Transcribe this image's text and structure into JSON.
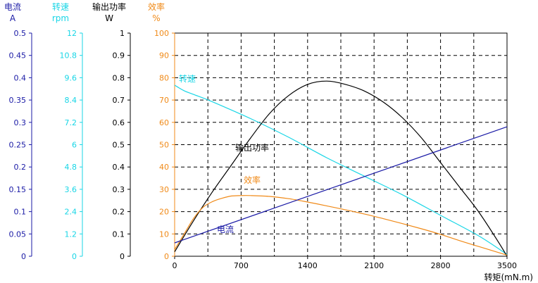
{
  "colors": {
    "current": "#1a1aa6",
    "speed": "#19d6e6",
    "power": "#000000",
    "efficiency": "#f08a18",
    "grid": "#000000"
  },
  "chart_data": {
    "type": "line",
    "title": "",
    "grid": true,
    "x_axis": {
      "label": "转矩",
      "unit": "(mN.m)",
      "range": [
        0,
        3500
      ],
      "ticks": [
        0,
        700,
        1400,
        2100,
        2800,
        3500
      ],
      "tick_labels": [
        "0",
        "700",
        "1400",
        "2100",
        "2800",
        "3500"
      ]
    },
    "y_axes": [
      {
        "id": "current",
        "title": "电流",
        "unit": "A",
        "range": [
          0,
          0.5
        ],
        "tick_labels": [
          "0.5",
          "0.45",
          "0.4",
          "0.35",
          "0.3",
          "0.25",
          "0.2",
          "0.15",
          "0.1",
          "0.05",
          "0"
        ]
      },
      {
        "id": "speed",
        "title": "转速",
        "unit": "rpm",
        "range": [
          0,
          12
        ],
        "tick_labels": [
          "12",
          "10.8",
          "9.6",
          "8.4",
          "7.2",
          "6",
          "4.8",
          "3.6",
          "2.4",
          "1.2",
          "0"
        ]
      },
      {
        "id": "power",
        "title": "输出功率",
        "unit": "W",
        "range": [
          0,
          1
        ],
        "tick_labels": [
          "1",
          "0.9",
          "0.8",
          "0.7",
          "0.6",
          "0.5",
          "0.4",
          "0.3",
          "0.2",
          "0.1",
          "0"
        ]
      },
      {
        "id": "efficiency",
        "title": "效率",
        "unit": "%",
        "range": [
          0,
          100
        ],
        "tick_labels": [
          "100",
          "90",
          "80",
          "70",
          "60",
          "50",
          "40",
          "30",
          "20",
          "10",
          "0"
        ]
      }
    ],
    "series": [
      {
        "name": "转速",
        "axis": "speed",
        "x": [
          0,
          100,
          200,
          400,
          800,
          1200,
          1600,
          2000,
          2400,
          2800,
          3200,
          3500
        ],
        "y": [
          9.2,
          8.9,
          8.7,
          8.3,
          7.4,
          6.4,
          5.3,
          4.3,
          3.3,
          2.2,
          1.1,
          0.1
        ]
      },
      {
        "name": "输出功率",
        "axis": "power",
        "x": [
          0,
          200,
          400,
          600,
          800,
          1000,
          1200,
          1400,
          1600,
          1800,
          2000,
          2200,
          2400,
          2600,
          2800,
          3000,
          3200,
          3400,
          3500
        ],
        "y": [
          0.02,
          0.16,
          0.29,
          0.41,
          0.53,
          0.64,
          0.72,
          0.77,
          0.785,
          0.77,
          0.74,
          0.69,
          0.62,
          0.53,
          0.42,
          0.31,
          0.2,
          0.07,
          0.0
        ]
      },
      {
        "name": "效率",
        "axis": "efficiency",
        "x": [
          0,
          100,
          200,
          300,
          400,
          500,
          600,
          700,
          800,
          1000,
          1200,
          1400,
          1600,
          1800,
          2000,
          2200,
          2400,
          2600,
          2800,
          3000,
          3200,
          3400,
          3500
        ],
        "y": [
          3,
          10,
          17,
          22,
          24.5,
          26,
          27,
          27.2,
          27.2,
          26.8,
          25.8,
          24.3,
          22.6,
          20.8,
          18.9,
          16.8,
          14.6,
          12.3,
          9.8,
          7.0,
          4.4,
          1.8,
          0.5
        ]
      },
      {
        "name": "电流",
        "axis": "current",
        "x": [
          0,
          3500
        ],
        "y": [
          0.03,
          0.29
        ]
      }
    ]
  }
}
